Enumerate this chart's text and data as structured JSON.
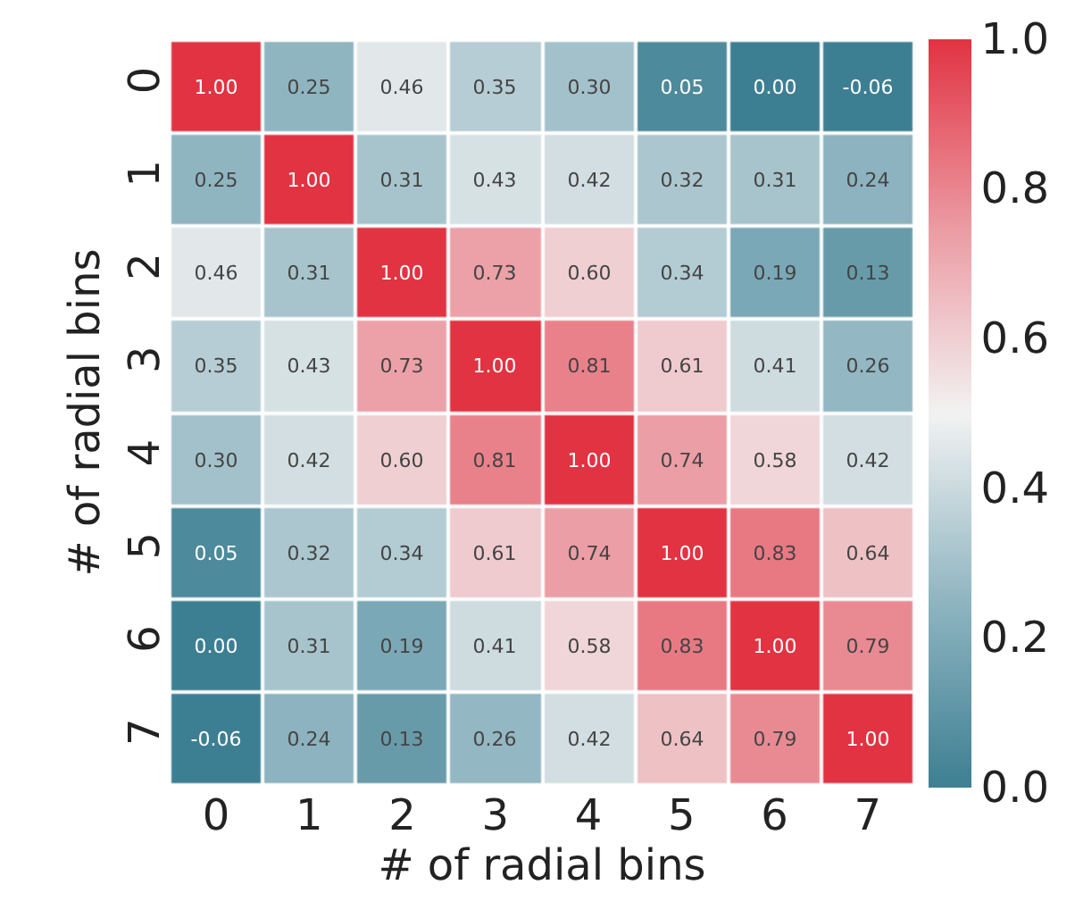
{
  "chart_data": {
    "type": "heatmap",
    "xlabel": "# of radial bins",
    "ylabel": "# of radial bins",
    "categories": [
      "0",
      "1",
      "2",
      "3",
      "4",
      "5",
      "6",
      "7"
    ],
    "y_categories": [
      "0",
      "1",
      "2",
      "3",
      "4",
      "5",
      "6",
      "7"
    ],
    "cells": [
      [
        1.0,
        0.25,
        0.46,
        0.35,
        0.3,
        0.05,
        0.0,
        -0.06
      ],
      [
        0.25,
        1.0,
        0.31,
        0.43,
        0.42,
        0.32,
        0.31,
        0.24
      ],
      [
        0.46,
        0.31,
        1.0,
        0.73,
        0.6,
        0.34,
        0.19,
        0.13
      ],
      [
        0.35,
        0.43,
        0.73,
        1.0,
        0.81,
        0.61,
        0.41,
        0.26
      ],
      [
        0.3,
        0.42,
        0.6,
        0.81,
        1.0,
        0.74,
        0.58,
        0.42
      ],
      [
        0.05,
        0.32,
        0.34,
        0.61,
        0.74,
        1.0,
        0.83,
        0.64
      ],
      [
        0.0,
        0.31,
        0.19,
        0.41,
        0.58,
        0.83,
        1.0,
        0.79
      ],
      [
        -0.06,
        0.24,
        0.13,
        0.26,
        0.42,
        0.64,
        0.79,
        1.0
      ]
    ],
    "cell_labels": [
      [
        "1.00",
        "0.25",
        "0.46",
        "0.35",
        "0.30",
        "0.05",
        "0.00",
        "-0.06"
      ],
      [
        "0.25",
        "1.00",
        "0.31",
        "0.43",
        "0.42",
        "0.32",
        "0.31",
        "0.24"
      ],
      [
        "0.46",
        "0.31",
        "1.00",
        "0.73",
        "0.60",
        "0.34",
        "0.19",
        "0.13"
      ],
      [
        "0.35",
        "0.43",
        "0.73",
        "1.00",
        "0.81",
        "0.61",
        "0.41",
        "0.26"
      ],
      [
        "0.30",
        "0.42",
        "0.60",
        "0.81",
        "1.00",
        "0.74",
        "0.58",
        "0.42"
      ],
      [
        "0.05",
        "0.32",
        "0.34",
        "0.61",
        "0.74",
        "1.00",
        "0.83",
        "0.64"
      ],
      [
        "0.00",
        "0.31",
        "0.19",
        "0.41",
        "0.58",
        "0.83",
        "1.00",
        "0.79"
      ],
      [
        "-0.06",
        "0.24",
        "0.13",
        "0.26",
        "0.42",
        "0.64",
        "0.79",
        "1.00"
      ]
    ],
    "clim": [
      0,
      1
    ],
    "cticks": [
      {
        "value": 0,
        "label": "0.0"
      },
      {
        "value": 0.2,
        "label": "0.2"
      },
      {
        "value": 0.4,
        "label": "0.4"
      },
      {
        "value": 0.6,
        "label": "0.6"
      },
      {
        "value": 0.8,
        "label": "0.8"
      },
      {
        "value": 1,
        "label": "1.0"
      }
    ]
  }
}
